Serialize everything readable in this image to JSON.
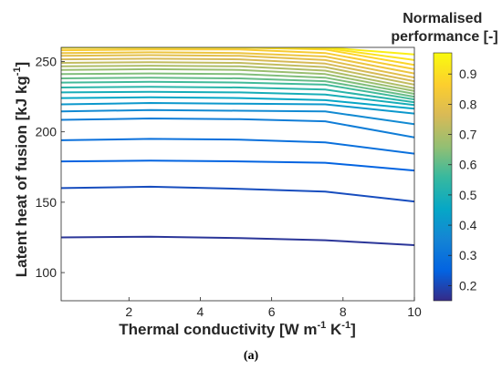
{
  "chart_data": {
    "type": "contour",
    "caption": "(a)",
    "xaxis": {
      "label_parts": [
        "Thermal conductivity [W m",
        "-1",
        " K",
        "-1",
        "]"
      ],
      "range": [
        0.1,
        10
      ],
      "ticks": [
        2,
        4,
        6,
        8,
        10
      ],
      "tick_labels": [
        "2",
        "4",
        "6",
        "8",
        "10"
      ]
    },
    "yaxis": {
      "label_parts": [
        "Latent heat of fusion [kJ kg",
        "-1",
        "]"
      ],
      "range": [
        80,
        260
      ],
      "ticks": [
        100,
        150,
        200,
        250
      ],
      "tick_labels": [
        "100",
        "150",
        "200",
        "250"
      ]
    },
    "colorbar": {
      "title_lines": [
        "Normalised",
        "performance [-]"
      ],
      "range": [
        0.15,
        0.97
      ],
      "colormap": "parula",
      "ticks": [
        0.2,
        0.3,
        0.4,
        0.5,
        0.6,
        0.7,
        0.8,
        0.9
      ],
      "tick_labels": [
        "0.2",
        "0.3",
        "0.4",
        "0.5",
        "0.6",
        "0.7",
        "0.8",
        "0.9"
      ]
    },
    "contour_x": [
      0.1,
      2.6,
      5.1,
      7.5,
      10
    ],
    "contours": [
      {
        "level": 0.17,
        "y": [
          125,
          125.5,
          124.5,
          123,
          119.5
        ]
      },
      {
        "level": 0.21,
        "y": [
          160,
          161,
          159.5,
          157.5,
          150.5
        ]
      },
      {
        "level": 0.25,
        "y": [
          179,
          179.5,
          179,
          178,
          172.5
        ]
      },
      {
        "level": 0.29,
        "y": [
          194,
          195,
          194.5,
          192.5,
          184.5
        ]
      },
      {
        "level": 0.33,
        "y": [
          208.5,
          209.5,
          209,
          207.5,
          196
        ]
      },
      {
        "level": 0.37,
        "y": [
          214.5,
          215.5,
          215,
          214.5,
          205.5
        ]
      },
      {
        "level": 0.41,
        "y": [
          219.5,
          220.5,
          220,
          219.5,
          213
        ]
      },
      {
        "level": 0.45,
        "y": [
          224,
          224.5,
          224,
          222.5,
          216.5
        ]
      },
      {
        "level": 0.49,
        "y": [
          228,
          228.5,
          228,
          226.5,
          219
        ]
      },
      {
        "level": 0.53,
        "y": [
          231.5,
          232,
          231.5,
          230,
          221
        ]
      },
      {
        "level": 0.57,
        "y": [
          235,
          235.5,
          235,
          233.5,
          223
        ]
      },
      {
        "level": 0.61,
        "y": [
          238,
          238.5,
          238,
          236,
          225
        ]
      },
      {
        "level": 0.64,
        "y": [
          241,
          241.5,
          241,
          238.5,
          227
        ]
      },
      {
        "level": 0.67,
        "y": [
          244,
          244.5,
          244,
          241,
          229
        ]
      },
      {
        "level": 0.7,
        "y": [
          246.5,
          247,
          246.5,
          243.5,
          231
        ]
      },
      {
        "level": 0.73,
        "y": [
          249,
          249.5,
          249,
          246,
          233.5
        ]
      },
      {
        "level": 0.76,
        "y": [
          251.5,
          252,
          251.5,
          248.5,
          236
        ]
      },
      {
        "level": 0.79,
        "y": [
          254,
          254.5,
          254,
          251,
          238.5
        ]
      },
      {
        "level": 0.82,
        "y": [
          256,
          256.5,
          256,
          253.5,
          241.5
        ]
      },
      {
        "level": 0.85,
        "y": [
          258,
          258.5,
          258.5,
          256,
          244.5
        ]
      },
      {
        "level": 0.88,
        "y": [
          259.6,
          259.8,
          259.8,
          258.5,
          247.5
        ]
      },
      {
        "level": 0.91,
        "y": [
          260,
          260,
          260,
          259.6,
          251
        ]
      },
      {
        "level": 0.94,
        "y": [
          260,
          260,
          260,
          260,
          255
        ]
      }
    ]
  }
}
